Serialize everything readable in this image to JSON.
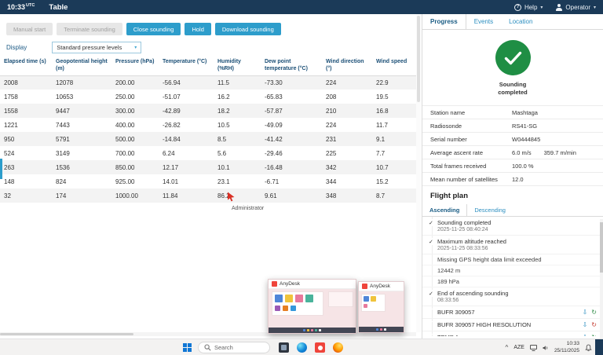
{
  "icons": {
    "help_glyph": "?",
    "caret_down": "▾",
    "check": "✓",
    "download_glyph": "⇩",
    "resend_glyph": "↻",
    "tray_chevron": "^"
  },
  "colors": {
    "topbar_navy": "#1b3a58",
    "accent_blue": "#2d9dcb",
    "success_green": "#1f8e44",
    "anydesk_red": "#ef443b",
    "error_red": "#c43a2e"
  },
  "topbar": {
    "time": "10:33",
    "time_suffix": "UTC",
    "title": "Table",
    "help_label": "Help",
    "operator_label": "Operator"
  },
  "toolbar": {
    "buttons": [
      {
        "label": "Manual start",
        "enabled": false
      },
      {
        "label": "Terminate sounding",
        "enabled": false
      },
      {
        "label": "Close sounding",
        "enabled": true
      },
      {
        "label": "Hold",
        "enabled": true
      },
      {
        "label": "Download sounding",
        "enabled": true
      }
    ]
  },
  "display": {
    "label": "Display",
    "selected": "Standard pressure levels"
  },
  "table": {
    "columns": [
      "Elapsed time (s)",
      "Geopotential height (m)",
      "Pressure (hPa)",
      "Temperature (°C)",
      "Humidity (%RH)",
      "Dew point temperature (°C)",
      "Wind direction (°)",
      "Wind speed"
    ],
    "rows": [
      [
        "2008",
        "12078",
        "200.00",
        "-56.94",
        "11.5",
        "-73.30",
        "224",
        "22.9"
      ],
      [
        "1758",
        "10653",
        "250.00",
        "-51.07",
        "16.2",
        "-65.83",
        "208",
        "19.5"
      ],
      [
        "1558",
        "9447",
        "300.00",
        "-42.89",
        "18.2",
        "-57.87",
        "210",
        "16.8"
      ],
      [
        "1221",
        "7443",
        "400.00",
        "-26.82",
        "10.5",
        "-49.09",
        "224",
        "11.7"
      ],
      [
        "950",
        "5791",
        "500.00",
        "-14.84",
        "8.5",
        "-41.42",
        "231",
        "9.1"
      ],
      [
        "524",
        "3149",
        "700.00",
        "6.24",
        "5.6",
        "-29.46",
        "225",
        "7.7"
      ],
      [
        "263",
        "1536",
        "850.00",
        "12.17",
        "10.1",
        "-16.48",
        "342",
        "10.7"
      ],
      [
        "148",
        "824",
        "925.00",
        "14.01",
        "23.1",
        "-6.71",
        "344",
        "15.2"
      ],
      [
        "32",
        "174",
        "1000.00",
        "11.84",
        "86.2",
        "9.61",
        "348",
        "8.7"
      ]
    ]
  },
  "remote_cursor": {
    "label": "Administrator"
  },
  "panel": {
    "tabs": [
      "Progress",
      "Events",
      "Location"
    ],
    "active_tab": "Progress",
    "status": "Sounding completed",
    "details": [
      {
        "label": "Station name",
        "value": "Mashtaga"
      },
      {
        "label": "Radiosonde",
        "value": "RS41-SG"
      },
      {
        "label": "Serial number",
        "value": "W0444845"
      },
      {
        "label": "Average ascent rate",
        "value": "6.0 m/s",
        "extra": "359.7 m/min"
      },
      {
        "label": "Total frames received",
        "value": "100.0 %"
      },
      {
        "label": "Mean number of satellites",
        "value": "12.0"
      }
    ],
    "flight_plan": {
      "title": "Flight plan",
      "tabs": [
        "Ascending",
        "Descending"
      ],
      "active_tab": "Ascending",
      "items": [
        {
          "check": true,
          "title": "Sounding completed",
          "subtitle": "2025-11-25 08:40:24"
        },
        {
          "check": true,
          "title": "Maximum altitude reached",
          "subtitle": "2025-11-25 08:33:56",
          "notes": [
            "Missing GPS height data limit exceeded",
            "12442 m",
            "189 hPa"
          ]
        },
        {
          "check": true,
          "title": "End of ascending sounding",
          "subtitle": "08:33:56"
        },
        {
          "check": false,
          "title": "BUFR 309057",
          "status": "ok"
        },
        {
          "check": false,
          "title": "BUFR 309057 HIGH RESOLUTION",
          "status": "fail"
        },
        {
          "check": false,
          "title": "TEMP A",
          "status": "ok"
        }
      ]
    }
  },
  "anydesk": {
    "window_title": "AnyDesk"
  },
  "taskbar": {
    "search_placeholder": "Search",
    "app_icons": [
      "task-view-icon",
      "edge-icon",
      "anydesk-icon",
      "firefox-icon"
    ],
    "tray_language": "AZE",
    "time": "10:33",
    "date": "25/11/2025"
  }
}
